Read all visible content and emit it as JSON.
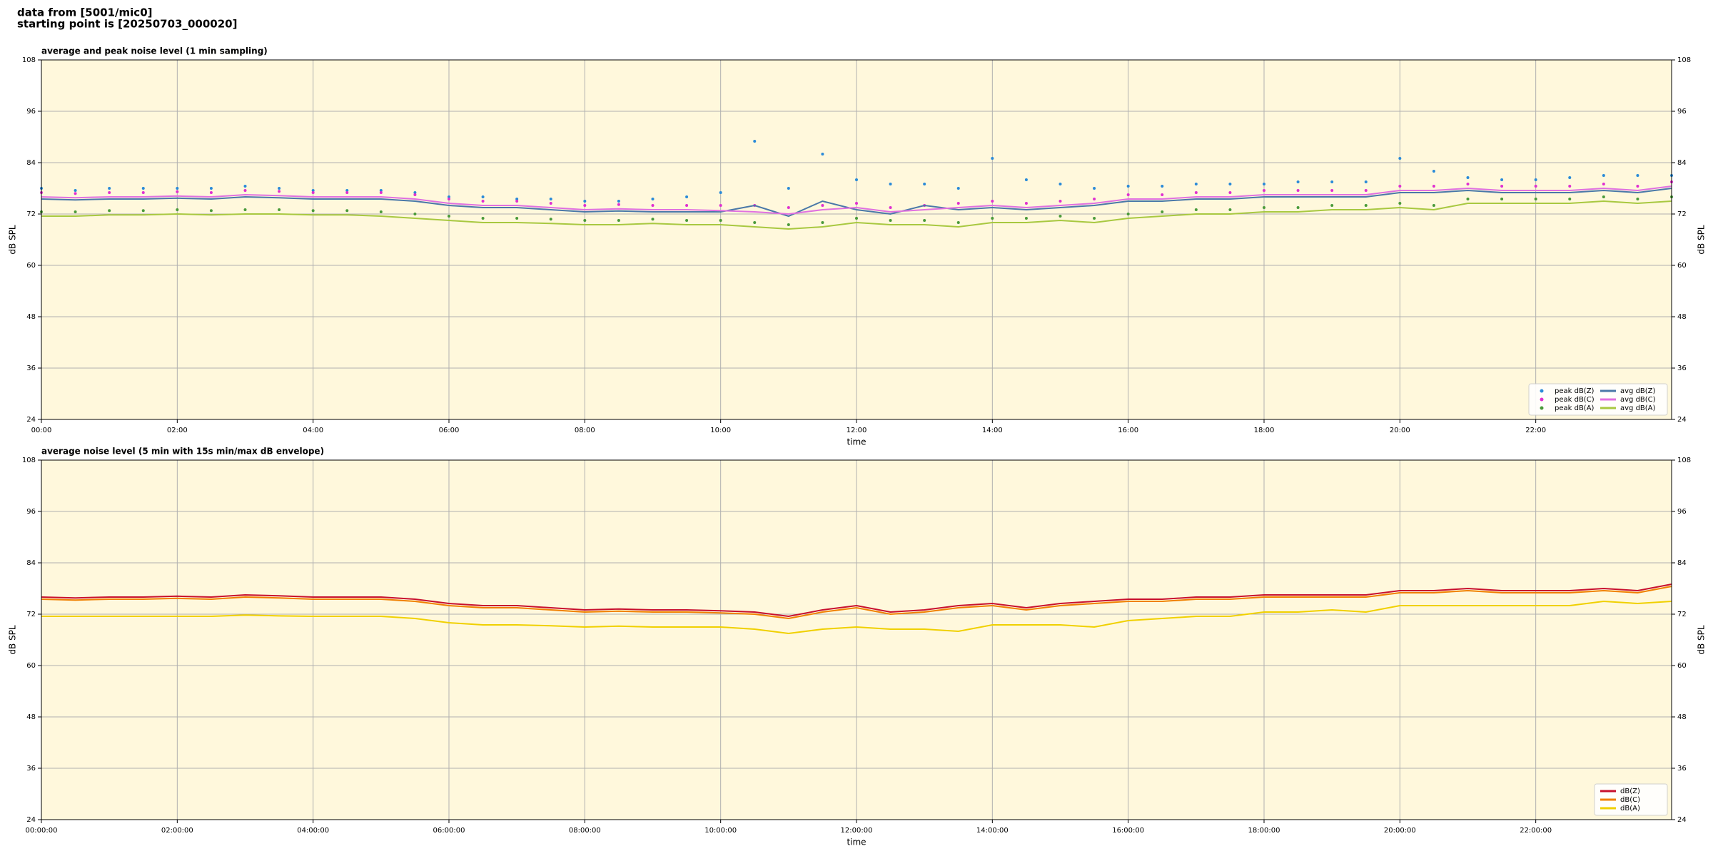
{
  "header": {
    "lines": [
      "data from [5001/mic0]",
      "starting point is [20250703_000020]"
    ]
  },
  "chart_data": [
    {
      "type": "line",
      "title": "average and peak noise level (1 min sampling)",
      "xlabel": "time",
      "ylabel": "dB SPL",
      "y2label": "dB SPL",
      "xlim": [
        0,
        24
      ],
      "xticks": [
        {
          "value": 0,
          "label": "00:00"
        },
        {
          "value": 2,
          "label": "02:00"
        },
        {
          "value": 4,
          "label": "04:00"
        },
        {
          "value": 6,
          "label": "06:00"
        },
        {
          "value": 8,
          "label": "08:00"
        },
        {
          "value": 10,
          "label": "10:00"
        },
        {
          "value": 12,
          "label": "12:00"
        },
        {
          "value": 14,
          "label": "14:00"
        },
        {
          "value": 16,
          "label": "16:00"
        },
        {
          "value": 18,
          "label": "18:00"
        },
        {
          "value": 20,
          "label": "20:00"
        },
        {
          "value": 22,
          "label": "22:00"
        }
      ],
      "ylim": [
        24,
        108
      ],
      "yticks": [
        24,
        36,
        48,
        60,
        72,
        84,
        96,
        108
      ],
      "y2ticks": [
        24,
        36,
        48,
        60,
        72,
        84,
        96,
        108
      ],
      "grid": true,
      "legend": "lower right",
      "legend_columns": 2,
      "background": "#fff8dc",
      "x": [
        0,
        0.5,
        1,
        1.5,
        2,
        2.5,
        3,
        3.5,
        4,
        4.5,
        5,
        5.5,
        6,
        6.5,
        7,
        7.5,
        8,
        8.5,
        9,
        9.5,
        10,
        10.5,
        11,
        11.5,
        12,
        12.5,
        13,
        13.5,
        14,
        14.5,
        15,
        15.5,
        16,
        16.5,
        17,
        17.5,
        18,
        18.5,
        19,
        19.5,
        20,
        20.5,
        21,
        21.5,
        22,
        22.5,
        23,
        23.5,
        24
      ],
      "series": [
        {
          "name": "peak dB(Z)",
          "mode": "markers",
          "color": "#2a8ad8",
          "values": [
            78,
            77.5,
            78,
            78,
            78,
            78,
            78.5,
            78,
            77.5,
            77.5,
            77.5,
            77,
            76,
            76,
            75.5,
            75.5,
            75,
            75,
            75.5,
            76,
            77,
            89,
            78,
            86,
            80,
            79,
            79,
            78,
            85,
            80,
            79,
            78,
            78.5,
            78.5,
            79,
            79,
            79,
            79.5,
            79.5,
            79.5,
            85,
            82,
            80.5,
            80,
            80,
            80.5,
            81,
            81,
            81
          ]
        },
        {
          "name": "peak dB(C)",
          "mode": "markers",
          "color": "#e030d0",
          "values": [
            77,
            76.8,
            77,
            77,
            77.2,
            77,
            77.5,
            77.3,
            77,
            77,
            77,
            76.5,
            75.5,
            75,
            75,
            74.5,
            74,
            74.2,
            74,
            74,
            74,
            74,
            73.5,
            74,
            74.5,
            73.5,
            74,
            74.5,
            75,
            74.5,
            75,
            75.5,
            76.5,
            76.5,
            77,
            77,
            77.5,
            77.5,
            77.5,
            77.5,
            78.5,
            78.5,
            79,
            78.5,
            78.5,
            78.5,
            79,
            78.5,
            79.5
          ]
        },
        {
          "name": "peak dB(A)",
          "mode": "markers",
          "color": "#4a9a3a",
          "values": [
            72.5,
            72.5,
            72.8,
            72.8,
            73,
            72.8,
            73,
            73,
            72.8,
            72.8,
            72.5,
            72,
            71.5,
            71,
            71,
            70.8,
            70.5,
            70.5,
            70.8,
            70.5,
            70.5,
            70,
            69.5,
            70,
            71,
            70.5,
            70.5,
            70,
            71,
            71,
            71.5,
            71,
            72,
            72.5,
            73,
            73,
            73.5,
            73.5,
            74,
            74,
            74.5,
            74,
            75.5,
            75.5,
            75.5,
            75.5,
            76,
            75.5,
            76
          ]
        },
        {
          "name": "avg dB(Z)",
          "mode": "lines",
          "color": "#4a78a8",
          "values": [
            75.5,
            75.3,
            75.5,
            75.5,
            75.7,
            75.5,
            76,
            75.8,
            75.5,
            75.5,
            75.5,
            75,
            74,
            73.5,
            73.5,
            73,
            72.5,
            72.7,
            72.5,
            72.5,
            72.5,
            74,
            71.5,
            75,
            73,
            72,
            74,
            73,
            73.5,
            73,
            73.5,
            74,
            75,
            75,
            75.5,
            75.5,
            76,
            76,
            76,
            76,
            77,
            77,
            77.5,
            77,
            77,
            77,
            77.5,
            77,
            78
          ]
        },
        {
          "name": "avg dB(C)",
          "mode": "lines",
          "color": "#e070e0",
          "values": [
            76,
            75.8,
            76,
            76,
            76.2,
            76,
            76.5,
            76.3,
            76,
            76,
            76,
            75.5,
            74.5,
            74,
            74,
            73.5,
            73,
            73.2,
            73,
            73,
            72.8,
            72.5,
            72,
            73,
            73.5,
            72.5,
            73,
            73.5,
            74,
            73.5,
            74,
            74.5,
            75.5,
            75.5,
            76,
            76,
            76.5,
            76.5,
            76.5,
            76.5,
            77.5,
            77.5,
            78,
            77.5,
            77.5,
            77.5,
            78,
            77.5,
            78.5
          ]
        },
        {
          "name": "avg dB(A)",
          "mode": "lines",
          "color": "#a8c840",
          "values": [
            71.5,
            71.5,
            71.8,
            71.8,
            72,
            71.8,
            72,
            72,
            71.8,
            71.8,
            71.5,
            71,
            70.5,
            70,
            70,
            69.8,
            69.5,
            69.5,
            69.8,
            69.5,
            69.5,
            69,
            68.5,
            69,
            70,
            69.5,
            69.5,
            69,
            70,
            70,
            70.5,
            70,
            71,
            71.5,
            72,
            72,
            72.5,
            72.5,
            73,
            73,
            73.5,
            73,
            74.5,
            74.5,
            74.5,
            74.5,
            75,
            74.5,
            75
          ]
        }
      ]
    },
    {
      "type": "line",
      "title": "average noise level (5 min with 15s min/max dB envelope)",
      "xlabel": "time",
      "ylabel": "dB SPL",
      "y2label": "dB SPL",
      "xlim": [
        0,
        24
      ],
      "xticks": [
        {
          "value": 0,
          "label": "00:00:00"
        },
        {
          "value": 2,
          "label": "02:00:00"
        },
        {
          "value": 4,
          "label": "04:00:00"
        },
        {
          "value": 6,
          "label": "06:00:00"
        },
        {
          "value": 8,
          "label": "08:00:00"
        },
        {
          "value": 10,
          "label": "10:00:00"
        },
        {
          "value": 12,
          "label": "12:00:00"
        },
        {
          "value": 14,
          "label": "14:00:00"
        },
        {
          "value": 16,
          "label": "16:00:00"
        },
        {
          "value": 18,
          "label": "18:00:00"
        },
        {
          "value": 20,
          "label": "20:00:00"
        },
        {
          "value": 22,
          "label": "22:00:00"
        }
      ],
      "ylim": [
        24,
        108
      ],
      "yticks": [
        24,
        36,
        48,
        60,
        72,
        84,
        96,
        108
      ],
      "y2ticks": [
        24,
        36,
        48,
        60,
        72,
        84,
        96,
        108
      ],
      "grid": true,
      "legend": "lower right",
      "legend_columns": 1,
      "background": "#fff8dc",
      "x": [
        0,
        0.5,
        1,
        1.5,
        2,
        2.5,
        3,
        3.5,
        4,
        4.5,
        5,
        5.5,
        6,
        6.5,
        7,
        7.5,
        8,
        8.5,
        9,
        9.5,
        10,
        10.5,
        11,
        11.5,
        12,
        12.5,
        13,
        13.5,
        14,
        14.5,
        15,
        15.5,
        16,
        16.5,
        17,
        17.5,
        18,
        18.5,
        19,
        19.5,
        20,
        20.5,
        21,
        21.5,
        22,
        22.5,
        23,
        23.5,
        24
      ],
      "series": [
        {
          "name": "dB(Z)",
          "mode": "lines",
          "color": "#c8102e",
          "values": [
            76,
            75.8,
            76,
            76,
            76.2,
            76,
            76.5,
            76.3,
            76,
            76,
            76,
            75.5,
            74.5,
            74,
            74,
            73.5,
            73,
            73.2,
            73,
            73,
            72.8,
            72.5,
            71.5,
            73,
            74,
            72.5,
            73,
            74,
            74.5,
            73.5,
            74.5,
            75,
            75.5,
            75.5,
            76,
            76,
            76.5,
            76.5,
            76.5,
            76.5,
            77.5,
            77.5,
            78,
            77.5,
            77.5,
            77.5,
            78,
            77.5,
            79
          ]
        },
        {
          "name": "dB(C)",
          "mode": "lines",
          "color": "#f08000",
          "values": [
            75.5,
            75.3,
            75.5,
            75.5,
            75.7,
            75.5,
            76,
            75.8,
            75.5,
            75.5,
            75.5,
            75,
            74,
            73.5,
            73.5,
            73,
            72.5,
            72.7,
            72.5,
            72.5,
            72.3,
            72,
            71,
            72.5,
            73.5,
            72,
            72.5,
            73.5,
            74,
            73,
            74,
            74.5,
            75,
            75,
            75.5,
            75.5,
            76,
            76,
            76,
            76,
            77,
            77,
            77.5,
            77,
            77,
            77,
            77.5,
            77,
            78.5
          ]
        },
        {
          "name": "dB(A)",
          "mode": "lines",
          "color": "#f0d000",
          "values": [
            71.5,
            71.5,
            71.5,
            71.5,
            71.5,
            71.5,
            71.8,
            71.6,
            71.5,
            71.5,
            71.5,
            71,
            70,
            69.5,
            69.5,
            69.3,
            69,
            69.2,
            69,
            69,
            69,
            68.5,
            67.5,
            68.5,
            69,
            68.5,
            68.5,
            68,
            69.5,
            69.5,
            69.5,
            69,
            70.5,
            71,
            71.5,
            71.5,
            72.5,
            72.5,
            73,
            72.5,
            74,
            74,
            74,
            74,
            74,
            74,
            75,
            74.5,
            75
          ]
        }
      ]
    }
  ]
}
